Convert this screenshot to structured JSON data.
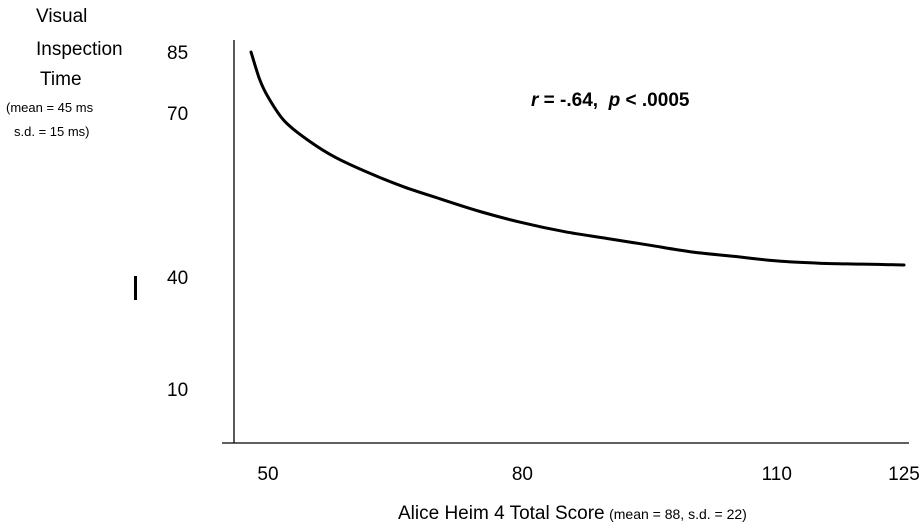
{
  "chart_data": {
    "type": "line",
    "title": "",
    "ylabel_lines": [
      "Visual",
      "Inspection",
      "Time",
      "(mean = 45 ms",
      "s.d. = 15 ms)"
    ],
    "xlabel_main": "Alice Heim 4 Total Score",
    "xlabel_note": "(mean = 88, s.d. = 22)",
    "annotation": {
      "r_symbol": "r",
      "r_value": " = -.64,",
      "p_symbol": "p",
      "p_value": " < .0005"
    },
    "x_ticks": [
      "50",
      "80",
      "110",
      "125"
    ],
    "y_ticks": [
      "85",
      "70",
      "40",
      "10"
    ],
    "x_tick_values": [
      50,
      80,
      110,
      125
    ],
    "y_tick_values": [
      85,
      70,
      40,
      10
    ],
    "xlim": [
      50,
      125
    ],
    "ylim": [
      10,
      85
    ],
    "series": [
      {
        "x": [
          48,
          49,
          50,
          52,
          55,
          58,
          62,
          66,
          70,
          75,
          80,
          85,
          90,
          95,
          100,
          105,
          110,
          115,
          120,
          125
        ],
        "y": [
          85,
          79,
          75,
          69.5,
          65,
          61.5,
          58,
          55,
          52.5,
          49.5,
          47,
          45,
          43.5,
          42,
          40.5,
          39.5,
          38.5,
          38,
          37.8,
          37.6
        ]
      }
    ],
    "grid": false,
    "legend": "none"
  },
  "colors": {
    "line": "#000000",
    "axis": "#000000"
  }
}
